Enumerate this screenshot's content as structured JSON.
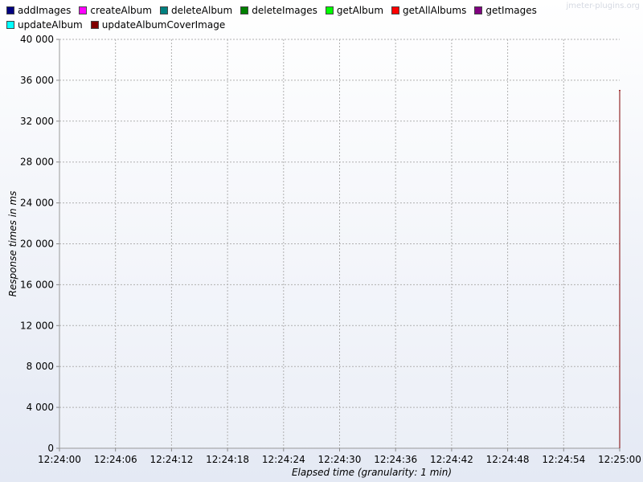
{
  "watermark": "jmeter-plugins.org",
  "legend": [
    {
      "label": "addImages",
      "color": "#000080"
    },
    {
      "label": "createAlbum",
      "color": "#ff00ff"
    },
    {
      "label": "deleteAlbum",
      "color": "#008080"
    },
    {
      "label": "deleteImages",
      "color": "#008000"
    },
    {
      "label": "getAlbum",
      "color": "#00ff00"
    },
    {
      "label": "getAllAlbums",
      "color": "#ff0000"
    },
    {
      "label": "getImages",
      "color": "#800080"
    },
    {
      "label": "updateAlbum",
      "color": "#00ffff"
    },
    {
      "label": "updateAlbumCoverImage",
      "color": "#800000"
    }
  ],
  "chart_data": {
    "type": "line",
    "xlabel": "Elapsed time (granularity: 1 min)",
    "ylabel": "Response times in ms",
    "ylim": [
      0,
      40000
    ],
    "yticks": [
      "0",
      "4 000",
      "8 000",
      "12 000",
      "16 000",
      "20 000",
      "24 000",
      "28 000",
      "32 000",
      "36 000",
      "40 000"
    ],
    "xticks": [
      "12:24:00",
      "12:24:06",
      "12:24:12",
      "12:24:18",
      "12:24:24",
      "12:24:30",
      "12:24:36",
      "12:24:42",
      "12:24:48",
      "12:24:54",
      "12:25:00"
    ],
    "grid": true,
    "legend_position": "top",
    "series": [
      {
        "name": "getAllAlbums",
        "color": "#ff0000",
        "points": [
          {
            "x": "12:25:00",
            "y": 35000
          }
        ]
      },
      {
        "name": "updateAlbumCoverImage",
        "color": "#800000",
        "points": [
          {
            "x": "12:25:00",
            "y": 35000
          }
        ]
      }
    ]
  }
}
